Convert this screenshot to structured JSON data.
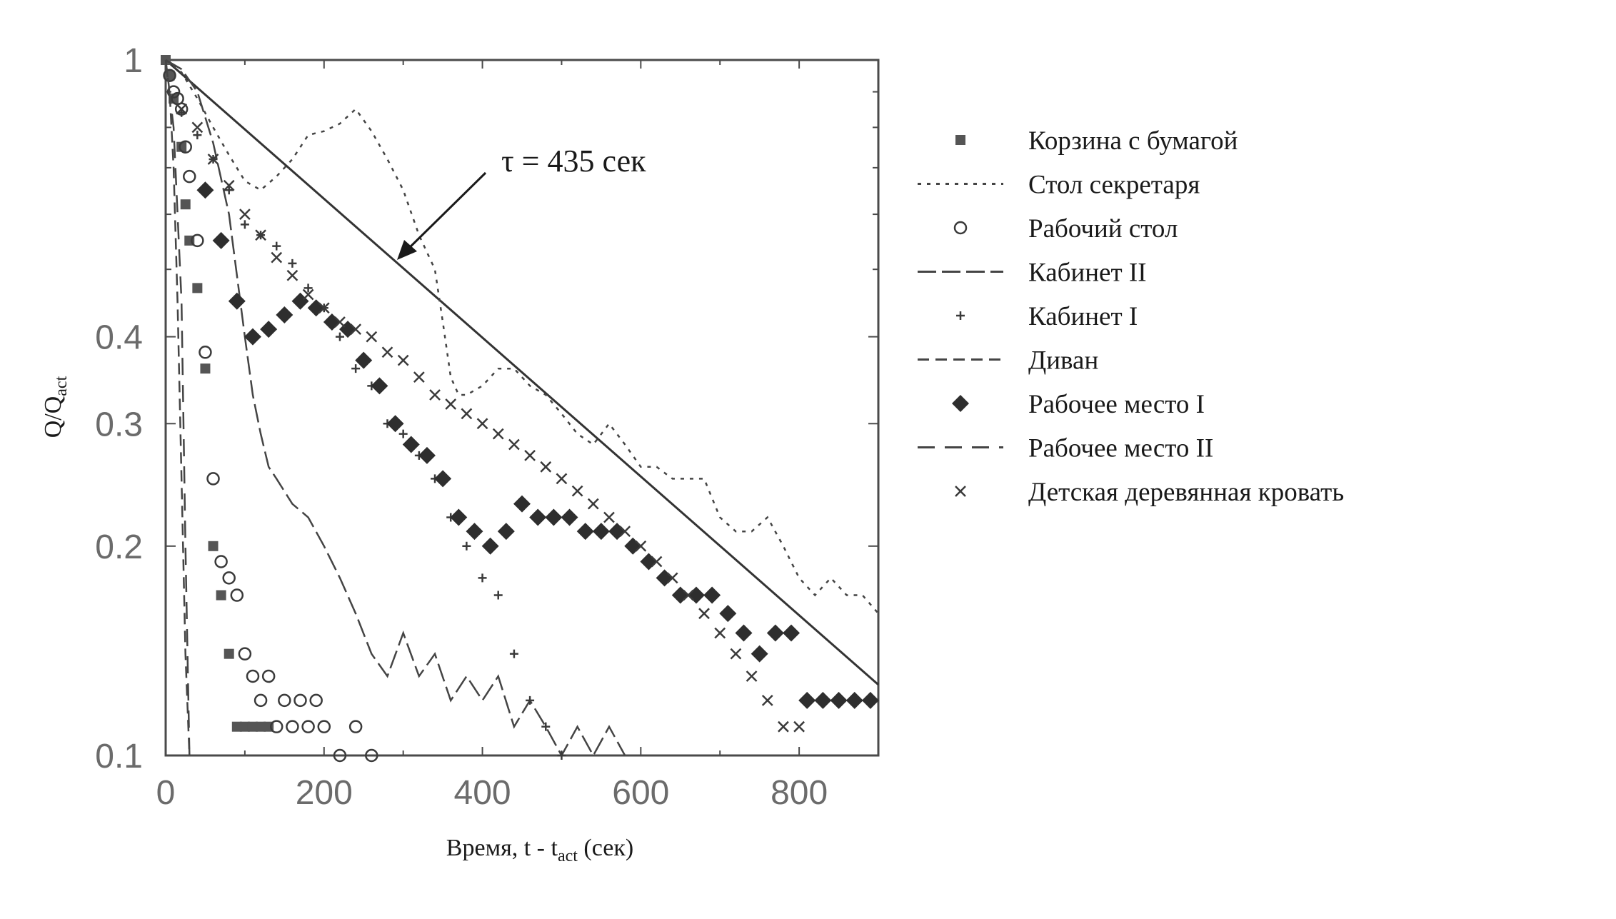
{
  "chart_data": {
    "type": "scatter",
    "title": "",
    "xlabel": {
      "main": "Время, t - t",
      "sub": "act",
      "tail": " (сек)"
    },
    "ylabel": {
      "main": "Q/Q",
      "sub": "act"
    },
    "xlim": [
      0,
      900
    ],
    "ylim": [
      0.1,
      1
    ],
    "yscale": "log",
    "xticks": [
      0,
      200,
      400,
      600,
      800
    ],
    "xtick_labels": [
      "0",
      "200",
      "400",
      "600",
      "800"
    ],
    "yticks": [
      0.1,
      0.2,
      0.3,
      0.4,
      1
    ],
    "ytick_labels": [
      "0.1",
      "0.2",
      "0.3",
      "0.4",
      "1"
    ],
    "grid": false,
    "legend_position": "right",
    "annotation": {
      "text": "τ = 435 сек",
      "points_to": [
        290,
        0.52
      ]
    },
    "reference_line": {
      "tau": 435,
      "x": [
        0,
        900
      ],
      "y": [
        1.0,
        0.1264
      ]
    },
    "series": [
      {
        "name": "Корзина с бумагой",
        "marker": "square",
        "x": [
          0,
          5,
          10,
          20,
          25,
          30,
          40,
          50,
          60,
          70,
          80,
          90,
          100,
          110,
          120,
          130
        ],
        "y": [
          1.0,
          0.95,
          0.88,
          0.75,
          0.62,
          0.55,
          0.47,
          0.36,
          0.2,
          0.17,
          0.14,
          0.11,
          0.11,
          0.11,
          0.11,
          0.11
        ]
      },
      {
        "name": "Стол секретаря",
        "marker": "dotted",
        "x": [
          0,
          20,
          40,
          60,
          80,
          100,
          120,
          140,
          160,
          180,
          200,
          220,
          240,
          260,
          280,
          300,
          320,
          340,
          350,
          360,
          370,
          380,
          400,
          420,
          440,
          460,
          480,
          500,
          520,
          540,
          560,
          580,
          600,
          620,
          640,
          660,
          680,
          700,
          720,
          740,
          760,
          780,
          800,
          820,
          840,
          860,
          880,
          900
        ],
        "y": [
          1.0,
          0.96,
          0.88,
          0.8,
          0.73,
          0.67,
          0.65,
          0.68,
          0.72,
          0.78,
          0.79,
          0.81,
          0.85,
          0.79,
          0.72,
          0.65,
          0.56,
          0.5,
          0.42,
          0.35,
          0.33,
          0.33,
          0.34,
          0.36,
          0.36,
          0.34,
          0.33,
          0.31,
          0.29,
          0.28,
          0.3,
          0.28,
          0.26,
          0.26,
          0.25,
          0.25,
          0.25,
          0.22,
          0.21,
          0.21,
          0.22,
          0.2,
          0.18,
          0.17,
          0.18,
          0.17,
          0.17,
          0.16
        ]
      },
      {
        "name": "Рабочий стол",
        "marker": "circle",
        "x": [
          5,
          10,
          15,
          20,
          25,
          30,
          40,
          50,
          60,
          70,
          80,
          90,
          100,
          110,
          120,
          130,
          140,
          150,
          160,
          170,
          180,
          190,
          200,
          220,
          240,
          260
        ],
        "y": [
          0.95,
          0.9,
          0.88,
          0.85,
          0.75,
          0.68,
          0.55,
          0.38,
          0.25,
          0.19,
          0.18,
          0.17,
          0.14,
          0.13,
          0.12,
          0.13,
          0.11,
          0.12,
          0.11,
          0.12,
          0.11,
          0.12,
          0.11,
          0.1,
          0.11,
          0.1
        ]
      },
      {
        "name": "Кабинет II",
        "marker": "longdash",
        "x": [
          0,
          20,
          40,
          60,
          80,
          90,
          100,
          110,
          120,
          130,
          140,
          160,
          180,
          200,
          220,
          240,
          260,
          280,
          300,
          320,
          340,
          360,
          380,
          400,
          420,
          440,
          460,
          480,
          500,
          520,
          540,
          560,
          580
        ],
        "y": [
          1.0,
          0.97,
          0.9,
          0.76,
          0.6,
          0.49,
          0.4,
          0.33,
          0.29,
          0.26,
          0.25,
          0.23,
          0.22,
          0.2,
          0.18,
          0.16,
          0.14,
          0.13,
          0.15,
          0.13,
          0.14,
          0.12,
          0.13,
          0.12,
          0.13,
          0.11,
          0.12,
          0.11,
          0.1,
          0.11,
          0.1,
          0.11,
          0.1
        ]
      },
      {
        "name": "Кабинет I",
        "marker": "plus",
        "x": [
          20,
          40,
          60,
          80,
          100,
          120,
          140,
          160,
          180,
          200,
          220,
          240,
          260,
          280,
          300,
          320,
          340,
          360,
          380,
          400,
          420,
          440,
          460,
          480,
          500
        ],
        "y": [
          0.84,
          0.78,
          0.72,
          0.65,
          0.58,
          0.56,
          0.54,
          0.51,
          0.47,
          0.44,
          0.4,
          0.36,
          0.34,
          0.3,
          0.29,
          0.27,
          0.25,
          0.22,
          0.2,
          0.18,
          0.17,
          0.14,
          0.12,
          0.11,
          0.1
        ]
      },
      {
        "name": "Диван",
        "marker": "dash",
        "x": [
          0,
          5,
          10,
          15,
          20,
          25,
          30
        ],
        "y": [
          1.0,
          0.9,
          0.7,
          0.45,
          0.25,
          0.14,
          0.1
        ]
      },
      {
        "name": "Рабочее место I",
        "marker": "diamond",
        "x": [
          50,
          70,
          90,
          110,
          130,
          150,
          170,
          190,
          210,
          230,
          250,
          270,
          290,
          310,
          330,
          350,
          370,
          390,
          410,
          430,
          450,
          470,
          490,
          510,
          530,
          550,
          570,
          590,
          610,
          630,
          650,
          670,
          690,
          710,
          730,
          750,
          770,
          790,
          810,
          830,
          850,
          870,
          890
        ],
        "y": [
          0.65,
          0.55,
          0.45,
          0.4,
          0.41,
          0.43,
          0.45,
          0.44,
          0.42,
          0.41,
          0.37,
          0.34,
          0.3,
          0.28,
          0.27,
          0.25,
          0.22,
          0.21,
          0.2,
          0.21,
          0.23,
          0.22,
          0.22,
          0.22,
          0.21,
          0.21,
          0.21,
          0.2,
          0.19,
          0.18,
          0.17,
          0.17,
          0.17,
          0.16,
          0.15,
          0.14,
          0.15,
          0.15,
          0.12,
          0.12,
          0.12,
          0.12,
          0.12
        ]
      },
      {
        "name": "Рабочее место II",
        "marker": "mediumdash",
        "x": [
          0,
          10,
          20,
          25,
          30
        ],
        "y": [
          1.0,
          0.8,
          0.45,
          0.2,
          0.1
        ]
      },
      {
        "name": "Детская деревянная кровать",
        "marker": "x",
        "x": [
          20,
          40,
          60,
          80,
          100,
          120,
          140,
          160,
          180,
          200,
          220,
          240,
          260,
          280,
          300,
          320,
          340,
          360,
          380,
          400,
          420,
          440,
          460,
          480,
          500,
          520,
          540,
          560,
          580,
          600,
          620,
          640,
          660,
          680,
          700,
          720,
          740,
          760,
          780,
          800
        ],
        "y": [
          0.85,
          0.8,
          0.72,
          0.66,
          0.6,
          0.56,
          0.52,
          0.49,
          0.46,
          0.44,
          0.42,
          0.41,
          0.4,
          0.38,
          0.37,
          0.35,
          0.33,
          0.32,
          0.31,
          0.3,
          0.29,
          0.28,
          0.27,
          0.26,
          0.25,
          0.24,
          0.23,
          0.22,
          0.21,
          0.2,
          0.19,
          0.18,
          0.17,
          0.16,
          0.15,
          0.14,
          0.13,
          0.12,
          0.11,
          0.11
        ]
      }
    ]
  }
}
